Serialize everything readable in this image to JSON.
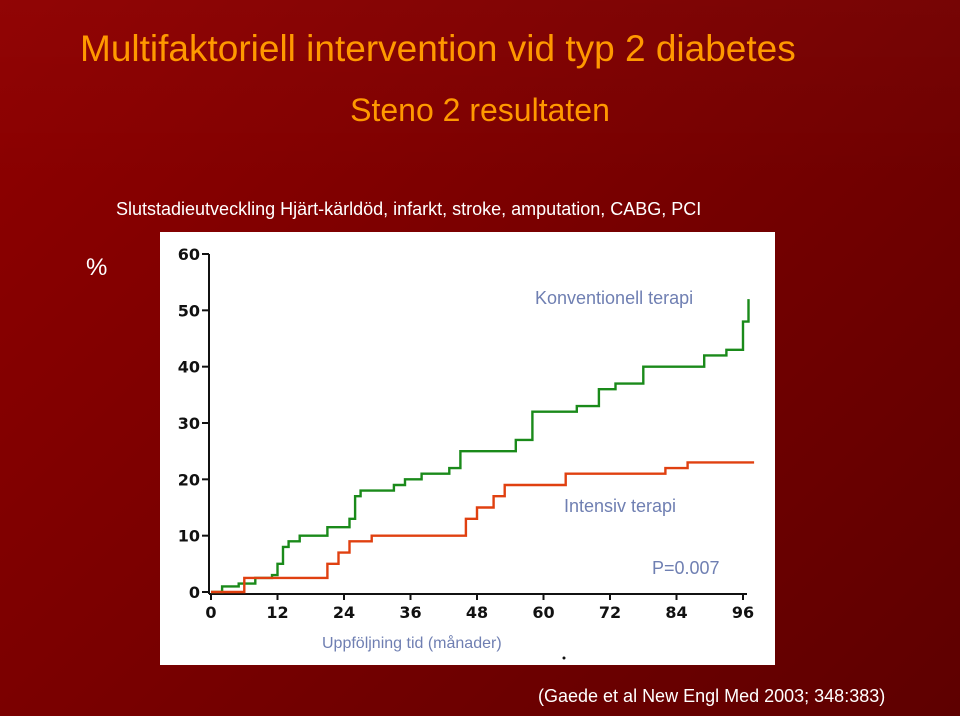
{
  "slide": {
    "title": "Multifaktoriell intervention vid typ 2 diabetes",
    "subtitle": "Steno 2 resultaten",
    "endpoint_label": "Slutstadieutveckling Hjärt-kärldöd, infarkt, stroke, amputation, CABG, PCI",
    "y_unit": "%",
    "citation": "(Gaede et al New Engl  Med 2003; 348:383)"
  },
  "colors": {
    "background": "#7a0000",
    "title": "#ff9900",
    "conventional": "#1a8a1a",
    "intensive": "#e04010",
    "label": "#6f7fb2"
  },
  "chart_data": {
    "type": "line",
    "xlabel": "Uppföljning tid (månader)",
    "ylabel": "%",
    "xlim": [
      0,
      96
    ],
    "ylim": [
      0,
      60
    ],
    "x_ticks": [
      0,
      12,
      24,
      36,
      48,
      60,
      72,
      84,
      96
    ],
    "y_ticks": [
      0,
      10,
      20,
      30,
      40,
      50,
      60
    ],
    "annotation": "P=0.007",
    "grid": false,
    "series": [
      {
        "name": "Konventionell terapi",
        "step": true,
        "points": [
          [
            0,
            0
          ],
          [
            2,
            0
          ],
          [
            2,
            1
          ],
          [
            5,
            1
          ],
          [
            5,
            1.5
          ],
          [
            8,
            1.5
          ],
          [
            8,
            2.5
          ],
          [
            11,
            2.5
          ],
          [
            11,
            3
          ],
          [
            12,
            3
          ],
          [
            12,
            5
          ],
          [
            13,
            5
          ],
          [
            13,
            8
          ],
          [
            14,
            8
          ],
          [
            14,
            9
          ],
          [
            16,
            9
          ],
          [
            16,
            10
          ],
          [
            21,
            10
          ],
          [
            21,
            11.5
          ],
          [
            25,
            11.5
          ],
          [
            25,
            13
          ],
          [
            26,
            13
          ],
          [
            26,
            17
          ],
          [
            27,
            17
          ],
          [
            27,
            18
          ],
          [
            33,
            18
          ],
          [
            33,
            19
          ],
          [
            35,
            19
          ],
          [
            35,
            20
          ],
          [
            38,
            20
          ],
          [
            38,
            21
          ],
          [
            43,
            21
          ],
          [
            43,
            22
          ],
          [
            45,
            22
          ],
          [
            45,
            25
          ],
          [
            55,
            25
          ],
          [
            55,
            27
          ],
          [
            58,
            27
          ],
          [
            58,
            32
          ],
          [
            66,
            32
          ],
          [
            66,
            33
          ],
          [
            70,
            33
          ],
          [
            70,
            36
          ],
          [
            73,
            36
          ],
          [
            73,
            37
          ],
          [
            78,
            37
          ],
          [
            78,
            40
          ],
          [
            89,
            40
          ],
          [
            89,
            42
          ],
          [
            93,
            42
          ],
          [
            93,
            43
          ],
          [
            96,
            43
          ],
          [
            96,
            48
          ],
          [
            97,
            48
          ],
          [
            97,
            52
          ]
        ]
      },
      {
        "name": "Intensiv terapi",
        "step": true,
        "points": [
          [
            0,
            0
          ],
          [
            6,
            0
          ],
          [
            6,
            2.5
          ],
          [
            21,
            2.5
          ],
          [
            21,
            5
          ],
          [
            23,
            5
          ],
          [
            23,
            7
          ],
          [
            25,
            7
          ],
          [
            25,
            9
          ],
          [
            29,
            9
          ],
          [
            29,
            10
          ],
          [
            46,
            10
          ],
          [
            46,
            13
          ],
          [
            48,
            13
          ],
          [
            48,
            15
          ],
          [
            51,
            15
          ],
          [
            51,
            17
          ],
          [
            53,
            17
          ],
          [
            53,
            19
          ],
          [
            64,
            19
          ],
          [
            64,
            21
          ],
          [
            82,
            21
          ],
          [
            82,
            22
          ],
          [
            86,
            22
          ],
          [
            86,
            23
          ],
          [
            98,
            23
          ]
        ]
      }
    ]
  }
}
